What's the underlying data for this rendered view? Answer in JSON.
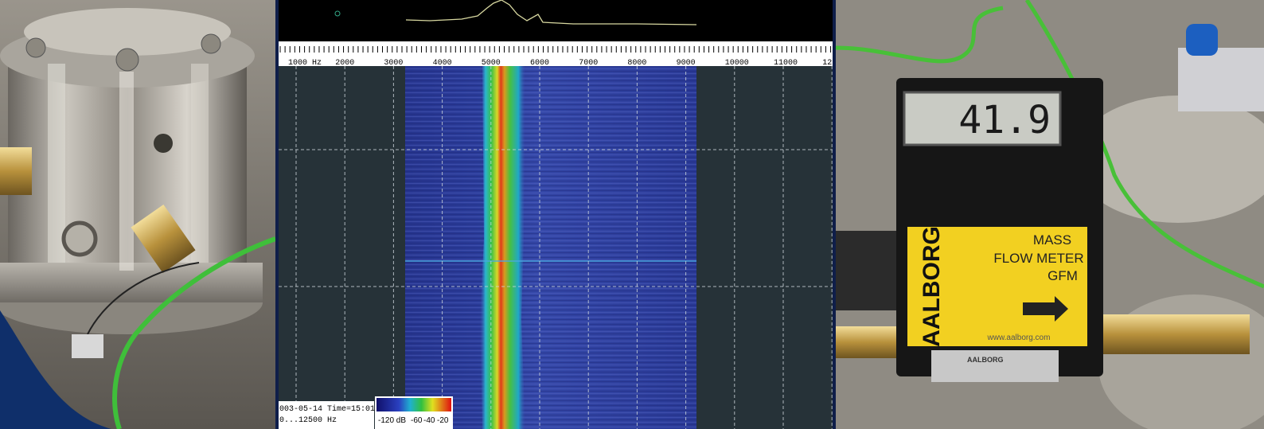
{
  "spectrogram": {
    "frequency_labels": [
      "1000 Hz",
      "2000",
      "3000",
      "4000",
      "5000",
      "6000",
      "7000",
      "8000",
      "9000",
      "10000",
      "11000",
      "12"
    ],
    "status_lines": [
      "003-05-14 Time=15:01",
      "0...12500 Hz"
    ],
    "colorbar_labels": [
      "-120 dB",
      "-60",
      "-40",
      "-20"
    ]
  },
  "flow_meter": {
    "display": "41.9",
    "brand": "AALBORG",
    "label_lines": [
      "MASS",
      "FLOW METER",
      "GFM"
    ],
    "website": "www.aalborg.com",
    "plate_brand": "AALBORG"
  }
}
